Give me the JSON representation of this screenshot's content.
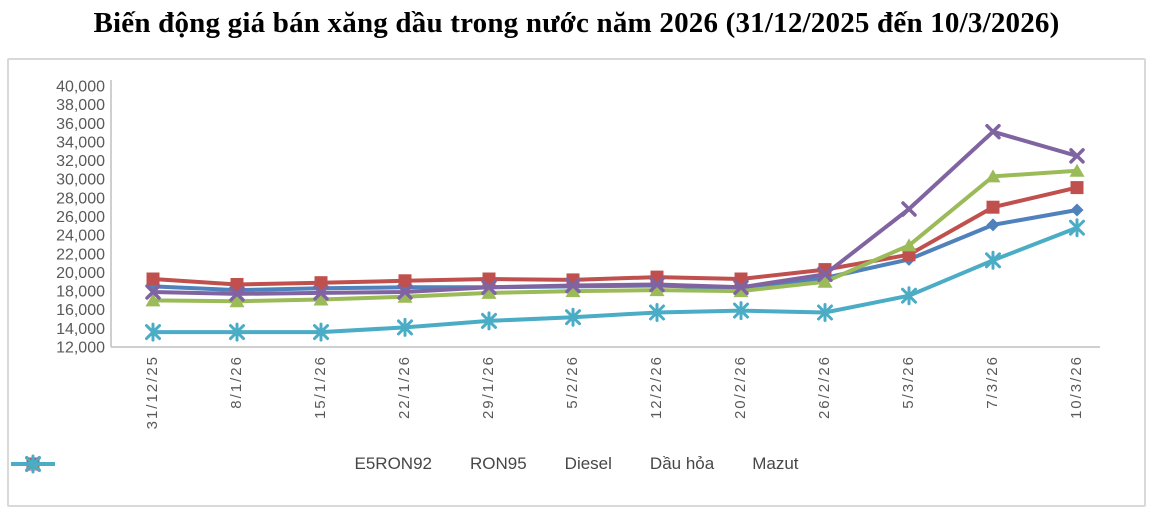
{
  "title": "Biến động giá bán xăng dầu trong nước năm 2026 (31/12/2025 đến 10/3/2026)",
  "chart_data": {
    "type": "line",
    "title": "Biến động giá bán xăng dầu trong nước năm 2026 (31/12/2025 đến 10/3/2026)",
    "categories": [
      "31/12/25",
      "8/1/26",
      "15/1/26",
      "22/1/26",
      "29/1/26",
      "5/2/26",
      "12/2/26",
      "20/2/26",
      "26/2/26",
      "5/3/26",
      "7/3/26",
      "10/3/26"
    ],
    "series": [
      {
        "name": "E5RON92",
        "color": "#4F81BD",
        "marker": "diamond",
        "values": [
          18500,
          18100,
          18300,
          18400,
          18400,
          18500,
          18600,
          18300,
          19400,
          21400,
          25100,
          26700
        ]
      },
      {
        "name": "RON95",
        "color": "#C0504D",
        "marker": "square",
        "values": [
          19300,
          18700,
          18900,
          19100,
          19300,
          19200,
          19500,
          19300,
          20300,
          21900,
          27000,
          29100
        ]
      },
      {
        "name": "Diesel",
        "color": "#9BBB59",
        "marker": "triangle",
        "values": [
          17000,
          16900,
          17100,
          17400,
          17800,
          18000,
          18100,
          18000,
          19000,
          22900,
          30300,
          30900
        ]
      },
      {
        "name": "Dầu hỏa",
        "color": "#8064A2",
        "marker": "x",
        "values": [
          17900,
          17700,
          17800,
          17900,
          18400,
          18600,
          18700,
          18400,
          19800,
          26800,
          35100,
          32500
        ]
      },
      {
        "name": "Mazut",
        "color": "#4BACC6",
        "marker": "asterisk",
        "values": [
          13600,
          13600,
          13600,
          14100,
          14800,
          15200,
          15700,
          15900,
          15700,
          17500,
          21300,
          24800
        ]
      }
    ],
    "ylim": [
      12000,
      40000
    ],
    "ytick_step": 2000,
    "ytick_labels": [
      "40,000",
      "38,000",
      "36,000",
      "34,000",
      "32,000",
      "30,000",
      "28,000",
      "26,000",
      "24,000",
      "22,000",
      "20,000",
      "18,000",
      "16,000",
      "14,000",
      "12,000"
    ],
    "grid": false,
    "legend_position": "bottom",
    "axis_text_color": "#595959",
    "axis_line_color": "#bfbfbf"
  }
}
